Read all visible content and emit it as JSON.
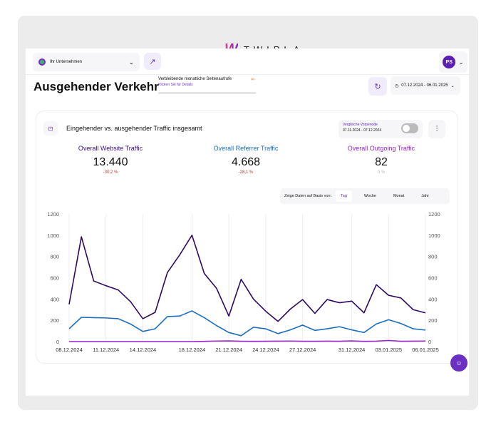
{
  "brand": {
    "logo_mark": "W",
    "logo_text": "TWIPLA"
  },
  "topbar": {
    "company": "Ihr Unternehmen",
    "avatar": "PS"
  },
  "header": {
    "title": "Ausgehender Verkehr",
    "quota_label": "Verbleibende monatliche Seitenaufrufe",
    "quota_link": "Klicken Sie für Details",
    "quota_value": "∞",
    "date_range": "07.12.2024 - 06.01.2025"
  },
  "card": {
    "title": "Eingehender vs. ausgehender Traffic insgesamt",
    "compare_label": "Vergleiche Vorperiode",
    "compare_range": "07.11.2024 - 07.12.2024",
    "compare_enabled": false,
    "kpis": [
      {
        "label": "Overall Website Traffic",
        "value": "13.440",
        "change": "-30,2 %"
      },
      {
        "label": "Overall Referrer Traffic",
        "value": "4.668",
        "change": "-28,1 %"
      },
      {
        "label": "Overall Outgoing Traffic",
        "value": "82",
        "change": "0 %"
      }
    ],
    "period_label": "Zeige Daten auf Basis von:",
    "periods": [
      "Tag",
      "Woche",
      "Monat",
      "Jahr"
    ],
    "active_period": "Tag"
  },
  "colors": {
    "website": "#2e0a63",
    "referrer": "#1b6ec2",
    "outgoing": "#9b1fd1",
    "accent": "#6b2fc2"
  },
  "chart_data": {
    "type": "line",
    "ylim": [
      0,
      1200
    ],
    "yticks": [
      0,
      200,
      400,
      600,
      800,
      1000,
      1200
    ],
    "dual_axis": true,
    "grid": "vertical",
    "x": [
      "08.12.2024",
      "09.12.2024",
      "10.12.2024",
      "11.12.2024",
      "12.12.2024",
      "13.12.2024",
      "14.12.2024",
      "15.12.2024",
      "16.12.2024",
      "17.12.2024",
      "18.12.2024",
      "19.12.2024",
      "20.12.2024",
      "21.12.2024",
      "22.12.2024",
      "23.12.2024",
      "24.12.2024",
      "25.12.2024",
      "26.12.2024",
      "27.12.2024",
      "28.12.2024",
      "29.12.2024",
      "30.12.2024",
      "31.12.2024",
      "01.01.2025",
      "02.01.2025",
      "03.01.2025",
      "04.01.2025",
      "05.01.2025",
      "06.01.2025"
    ],
    "xtick_labels": [
      "08.12.2024",
      "11.12.2024",
      "14.12.2024",
      "18.12.2024",
      "21.12.2024",
      "24.12.2024",
      "27.12.2024",
      "31.12.2024",
      "03.01.2025",
      "06.01.2025"
    ],
    "series": [
      {
        "name": "Overall Website Traffic",
        "values": [
          350,
          985,
          570,
          525,
          485,
          375,
          215,
          275,
          650,
          815,
          1000,
          640,
          500,
          240,
          585,
          400,
          285,
          190,
          305,
          395,
          265,
          395,
          365,
          380,
          270,
          535,
          435,
          410,
          300,
          270
        ]
      },
      {
        "name": "Overall Referrer Traffic",
        "values": [
          120,
          228,
          225,
          222,
          215,
          165,
          95,
          120,
          235,
          240,
          288,
          225,
          150,
          85,
          55,
          135,
          120,
          75,
          110,
          155,
          105,
          120,
          140,
          110,
          85,
          165,
          205,
          170,
          120,
          108
        ]
      },
      {
        "name": "Overall Outgoing Traffic",
        "values": [
          0,
          0,
          0,
          0,
          0,
          0,
          0,
          0,
          0,
          0,
          0,
          2,
          5,
          6,
          3,
          2,
          3,
          4,
          5,
          3,
          3,
          4,
          3,
          6,
          2,
          4,
          10,
          3,
          4,
          5
        ]
      }
    ]
  }
}
